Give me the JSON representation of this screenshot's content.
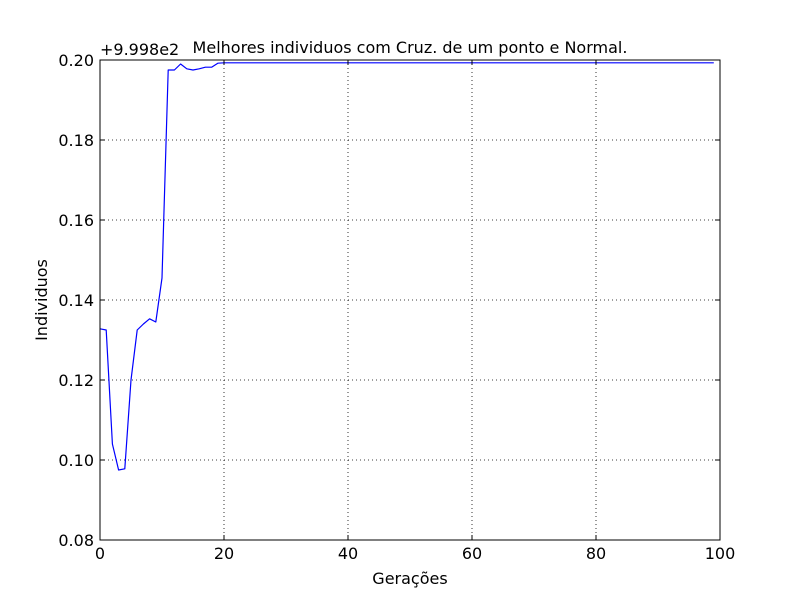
{
  "chart_data": {
    "type": "line",
    "title": "Melhores individuos com Cruz. de um ponto e Normal.",
    "offset_label": "+9.998e2",
    "xlabel": "Gerações",
    "ylabel": "Individuos",
    "xlim": [
      0,
      100
    ],
    "ylim": [
      0.08,
      0.2
    ],
    "xticks": [
      0,
      20,
      40,
      60,
      80,
      100
    ],
    "yticks": [
      0.08,
      0.1,
      0.12,
      0.14,
      0.16,
      0.18,
      0.2
    ],
    "xtick_labels": [
      "0",
      "20",
      "40",
      "60",
      "80",
      "100"
    ],
    "ytick_labels": [
      "0.08",
      "0.10",
      "0.12",
      "0.14",
      "0.16",
      "0.18",
      "0.20"
    ],
    "grid": true,
    "series": [
      {
        "color": "#0000ff",
        "x": [
          0,
          1,
          2,
          3,
          4,
          5,
          6,
          7,
          8,
          9,
          10,
          11,
          12,
          13,
          14,
          15,
          16,
          17,
          18,
          19,
          20,
          99
        ],
        "y": [
          0.1328,
          0.1325,
          0.104,
          0.0975,
          0.0978,
          0.12,
          0.1325,
          0.134,
          0.1353,
          0.1345,
          0.1455,
          0.1975,
          0.1975,
          0.199,
          0.1978,
          0.1975,
          0.1978,
          0.1982,
          0.1982,
          0.1992,
          0.1993,
          0.1993
        ]
      }
    ]
  }
}
